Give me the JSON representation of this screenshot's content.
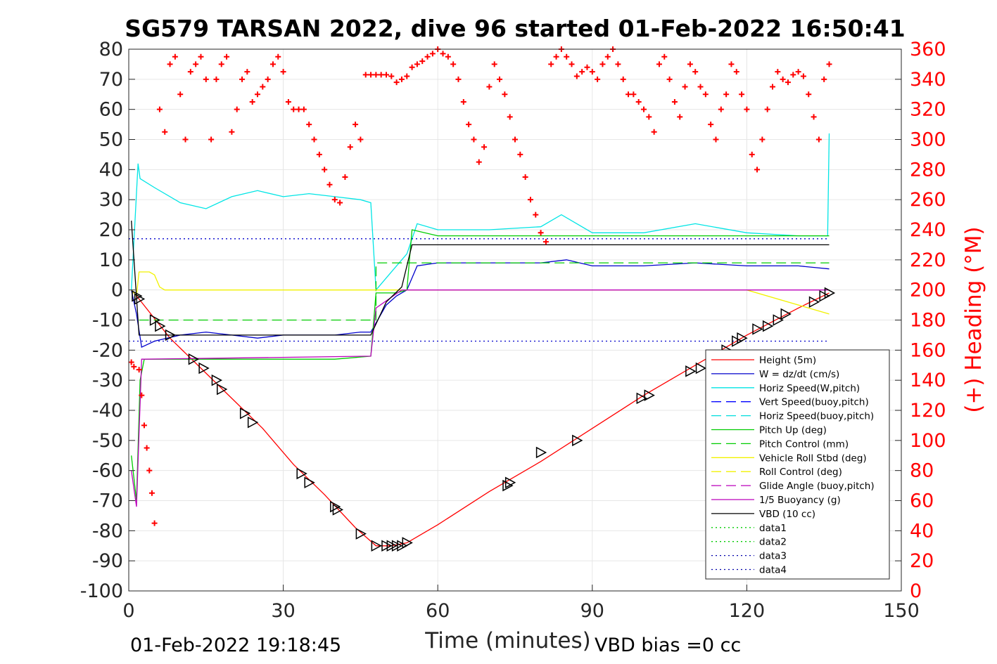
{
  "chart_data": {
    "type": "line",
    "title": "SG579 TARSAN 2022, dive 96 started 01-Feb-2022 16:50:41",
    "xlabel": "Time (minutes)",
    "ylabel": "",
    "y2label": "(+) Heading (°M)",
    "xlim": [
      0,
      150
    ],
    "ylim": [
      -100,
      80
    ],
    "y2lim": [
      0,
      360
    ],
    "xticks": [
      0,
      30,
      60,
      90,
      120,
      150
    ],
    "yticks": [
      80,
      70,
      60,
      50,
      40,
      30,
      20,
      10,
      0,
      -10,
      -20,
      -30,
      -40,
      -50,
      -60,
      -70,
      -80,
      -90,
      -100
    ],
    "y2ticks": [
      360,
      340,
      320,
      300,
      280,
      260,
      240,
      220,
      200,
      180,
      160,
      140,
      120,
      100,
      80,
      60,
      40,
      20,
      0
    ],
    "grid": true,
    "legend_position": "bottom-right",
    "footer_left": "01-Feb-2022 19:18:45",
    "footer_right": "VBD bias =0 cc",
    "colors": {
      "height": "#ff0000",
      "w": "#0000cc",
      "horiz": "#00e5e5",
      "vert_buoy": "#0000ff",
      "horiz_buoy": "#00dddd",
      "pitch_up": "#00cc00",
      "pitch_control": "#00cc00",
      "roll": "#f2f200",
      "roll_control": "#f2f200",
      "glide": "#bb00bb",
      "buoyancy": "#bb00bb",
      "vbd": "#000000",
      "heading": "#ff0000"
    },
    "series": [
      {
        "name": "Height (5m)",
        "key": "height",
        "style": "solid",
        "x": [
          0.5,
          2,
          8,
          14,
          20,
          26,
          32,
          38,
          44,
          48,
          51,
          54,
          60,
          70,
          80,
          90,
          100,
          110,
          120,
          130,
          136
        ],
        "y": [
          0,
          -3,
          -16,
          -26,
          -36,
          -46,
          -58,
          -68,
          -79,
          -85,
          -85,
          -84,
          -78,
          -67,
          -57,
          -46,
          -35,
          -25,
          -15,
          -6,
          -1
        ]
      },
      {
        "name": "W = dz/dt (cm/s)",
        "key": "w",
        "style": "solid",
        "x": [
          0.5,
          1.5,
          2.5,
          5,
          10,
          15,
          20,
          25,
          30,
          35,
          40,
          45,
          47,
          50,
          52,
          54,
          56,
          60,
          70,
          80,
          85,
          90,
          100,
          110,
          120,
          130,
          136
        ],
        "y": [
          0,
          -8,
          -19,
          -17,
          -15,
          -14,
          -15,
          -16,
          -15,
          -15,
          -15,
          -14,
          -14,
          -5,
          -2,
          0,
          8,
          9,
          9,
          9,
          10,
          8,
          8,
          9,
          8,
          8,
          7
        ]
      },
      {
        "name": "Horiz Speed(W,pitch)",
        "key": "horiz",
        "style": "solid",
        "x": [
          0.5,
          1.8,
          2.2,
          5,
          10,
          15,
          20,
          25,
          30,
          35,
          40,
          45,
          47,
          48,
          52,
          54,
          56,
          60,
          70,
          80,
          84,
          90,
          100,
          110,
          120,
          130,
          135.7,
          136
        ],
        "y": [
          0,
          42,
          37,
          34,
          29,
          27,
          31,
          33,
          31,
          32,
          31,
          30,
          29,
          0,
          8,
          12,
          22,
          20,
          20,
          21,
          25,
          19,
          19,
          22,
          19,
          18,
          18,
          52
        ]
      },
      {
        "name": "Vert Speed(buoy,pitch)",
        "key": "vert_buoy",
        "style": "dash",
        "x": [],
        "y": []
      },
      {
        "name": "Horiz Speed(buoy,pitch)",
        "key": "horiz_buoy",
        "style": "dash",
        "x": [],
        "y": []
      },
      {
        "name": "Pitch Up (deg)",
        "key": "pitch_up",
        "style": "solid",
        "x": [
          0.5,
          1.5,
          2.2,
          3,
          10,
          20,
          30,
          40,
          47,
          48,
          52,
          54,
          55,
          60,
          80,
          100,
          120,
          136
        ],
        "y": [
          -55,
          -70,
          -30,
          -23,
          -23,
          -23,
          -23,
          -23,
          -22,
          -1,
          -1,
          0,
          20,
          18,
          18,
          18,
          18,
          18
        ]
      },
      {
        "name": "Pitch Control (mm)",
        "key": "pitch_control",
        "style": "dash",
        "x": [
          2,
          48,
          48,
          136
        ],
        "y": [
          -10,
          -10,
          9,
          9
        ]
      },
      {
        "name": "Vehicle Roll Stbd (deg)",
        "key": "roll",
        "style": "solid",
        "x": [
          0.5,
          1.5,
          2,
          2.5,
          4,
          5,
          6,
          7,
          20,
          30,
          40,
          46,
          48,
          50,
          60,
          80,
          100,
          120,
          136
        ],
        "y": [
          0,
          -2,
          6,
          6,
          6,
          5,
          1,
          0,
          0,
          0,
          0,
          0,
          0,
          0,
          0,
          0,
          0,
          0,
          -8
        ]
      },
      {
        "name": "Roll Control (deg)",
        "key": "roll_control",
        "style": "dash",
        "x": [],
        "y": []
      },
      {
        "name": "Glide Angle (buoy,pitch)",
        "key": "glide",
        "style": "dash",
        "x": [],
        "y": []
      },
      {
        "name": "1/5 Buoyancy (g)",
        "key": "buoyancy",
        "style": "solid",
        "x": [
          0.5,
          1.5,
          2.5,
          3,
          47,
          48,
          53,
          136
        ],
        "y": [
          -60,
          -72,
          -23,
          -23,
          -22,
          -6,
          0,
          0
        ]
      },
      {
        "name": "VBD (10 cc)",
        "key": "vbd",
        "style": "solid",
        "x": [
          0.5,
          2,
          47,
          50,
          53,
          55,
          136
        ],
        "y": [
          23,
          -15,
          -15,
          -4,
          1,
          15,
          15
        ]
      },
      {
        "name": "data1",
        "key": "data1",
        "style": "dot",
        "x": [],
        "y": []
      },
      {
        "name": "data2",
        "key": "data2",
        "style": "dot",
        "x": [],
        "y": []
      },
      {
        "name": "data3",
        "key": "data3",
        "style": "dot",
        "x": [
          0,
          136
        ],
        "y": [
          -17,
          -17
        ]
      },
      {
        "name": "data4",
        "key": "data4",
        "style": "dot",
        "x": [
          0,
          136
        ],
        "y": [
          17,
          17
        ]
      }
    ],
    "heading": {
      "name": "(+) Heading (°M)",
      "marker": "+",
      "x": [
        0.5,
        1,
        2,
        2.5,
        3,
        3.5,
        4,
        4.5,
        5,
        6,
        7,
        8,
        9,
        10,
        11,
        12,
        13,
        14,
        15,
        16,
        17,
        18,
        19,
        20,
        21,
        22,
        23,
        24,
        25,
        26,
        27,
        28,
        29,
        30,
        31,
        32,
        33,
        34,
        35,
        36,
        37,
        38,
        39,
        40,
        41,
        42,
        43,
        44,
        45,
        46,
        47,
        48,
        49,
        50,
        51,
        52,
        53,
        54,
        55,
        56,
        57,
        58,
        59,
        60,
        61,
        62,
        63,
        64,
        65,
        66,
        67,
        68,
        69,
        70,
        71,
        72,
        73,
        74,
        75,
        76,
        77,
        78,
        79,
        80,
        81,
        82,
        83,
        84,
        85,
        86,
        87,
        88,
        89,
        90,
        91,
        92,
        93,
        94,
        95,
        96,
        97,
        98,
        99,
        100,
        101,
        102,
        103,
        104,
        105,
        106,
        107,
        108,
        109,
        110,
        111,
        112,
        113,
        114,
        115,
        116,
        117,
        118,
        119,
        120,
        121,
        122,
        123,
        124,
        125,
        126,
        127,
        128,
        129,
        130,
        131,
        132,
        133,
        134,
        135,
        136
      ],
      "y": [
        152,
        149,
        147,
        130,
        110,
        95,
        80,
        65,
        45,
        320,
        305,
        350,
        355,
        330,
        300,
        345,
        350,
        355,
        340,
        300,
        340,
        350,
        355,
        305,
        320,
        340,
        345,
        325,
        330,
        335,
        340,
        350,
        355,
        345,
        325,
        320,
        320,
        320,
        310,
        300,
        290,
        280,
        270,
        260,
        258,
        275,
        295,
        310,
        300,
        343,
        343,
        343,
        343,
        343,
        342,
        338,
        340,
        342,
        348,
        350,
        352,
        355,
        357,
        360,
        357,
        355,
        350,
        340,
        325,
        310,
        300,
        285,
        295,
        335,
        350,
        340,
        330,
        315,
        300,
        290,
        275,
        260,
        250,
        238,
        232,
        350,
        355,
        360,
        355,
        350,
        342,
        345,
        348,
        345,
        340,
        350,
        355,
        360,
        350,
        340,
        330,
        330,
        325,
        320,
        315,
        305,
        350,
        355,
        340,
        325,
        315,
        335,
        350,
        345,
        335,
        330,
        310,
        300,
        320,
        330,
        350,
        345,
        330,
        320,
        290,
        280,
        300,
        320,
        335,
        345,
        340,
        338,
        343,
        345,
        342,
        330,
        315,
        300,
        340,
        350
      ]
    },
    "markers": {
      "name": "dive triangles",
      "x": [
        1.5,
        2,
        5,
        6,
        8,
        12.5,
        14.5,
        17,
        18,
        22.5,
        24,
        33.5,
        35,
        40,
        40.5,
        45,
        48,
        50,
        51,
        52,
        53,
        54,
        73.5,
        74,
        80,
        87,
        99.5,
        101,
        109,
        111,
        116,
        118,
        119,
        122,
        124,
        126,
        127.5,
        133,
        135,
        136
      ],
      "y": [
        -2,
        -3,
        -10,
        -12,
        -15,
        -23,
        -26,
        -30,
        -33,
        -41,
        -44,
        -61,
        -64,
        -72,
        -73,
        -81,
        -85,
        -85,
        -85,
        -85,
        -85,
        -84,
        -65,
        -64,
        -54,
        -50,
        -36,
        -35,
        -27,
        -26,
        -20,
        -17,
        -16,
        -13,
        -12,
        -10,
        -8,
        -4,
        -2,
        -1
      ]
    }
  }
}
